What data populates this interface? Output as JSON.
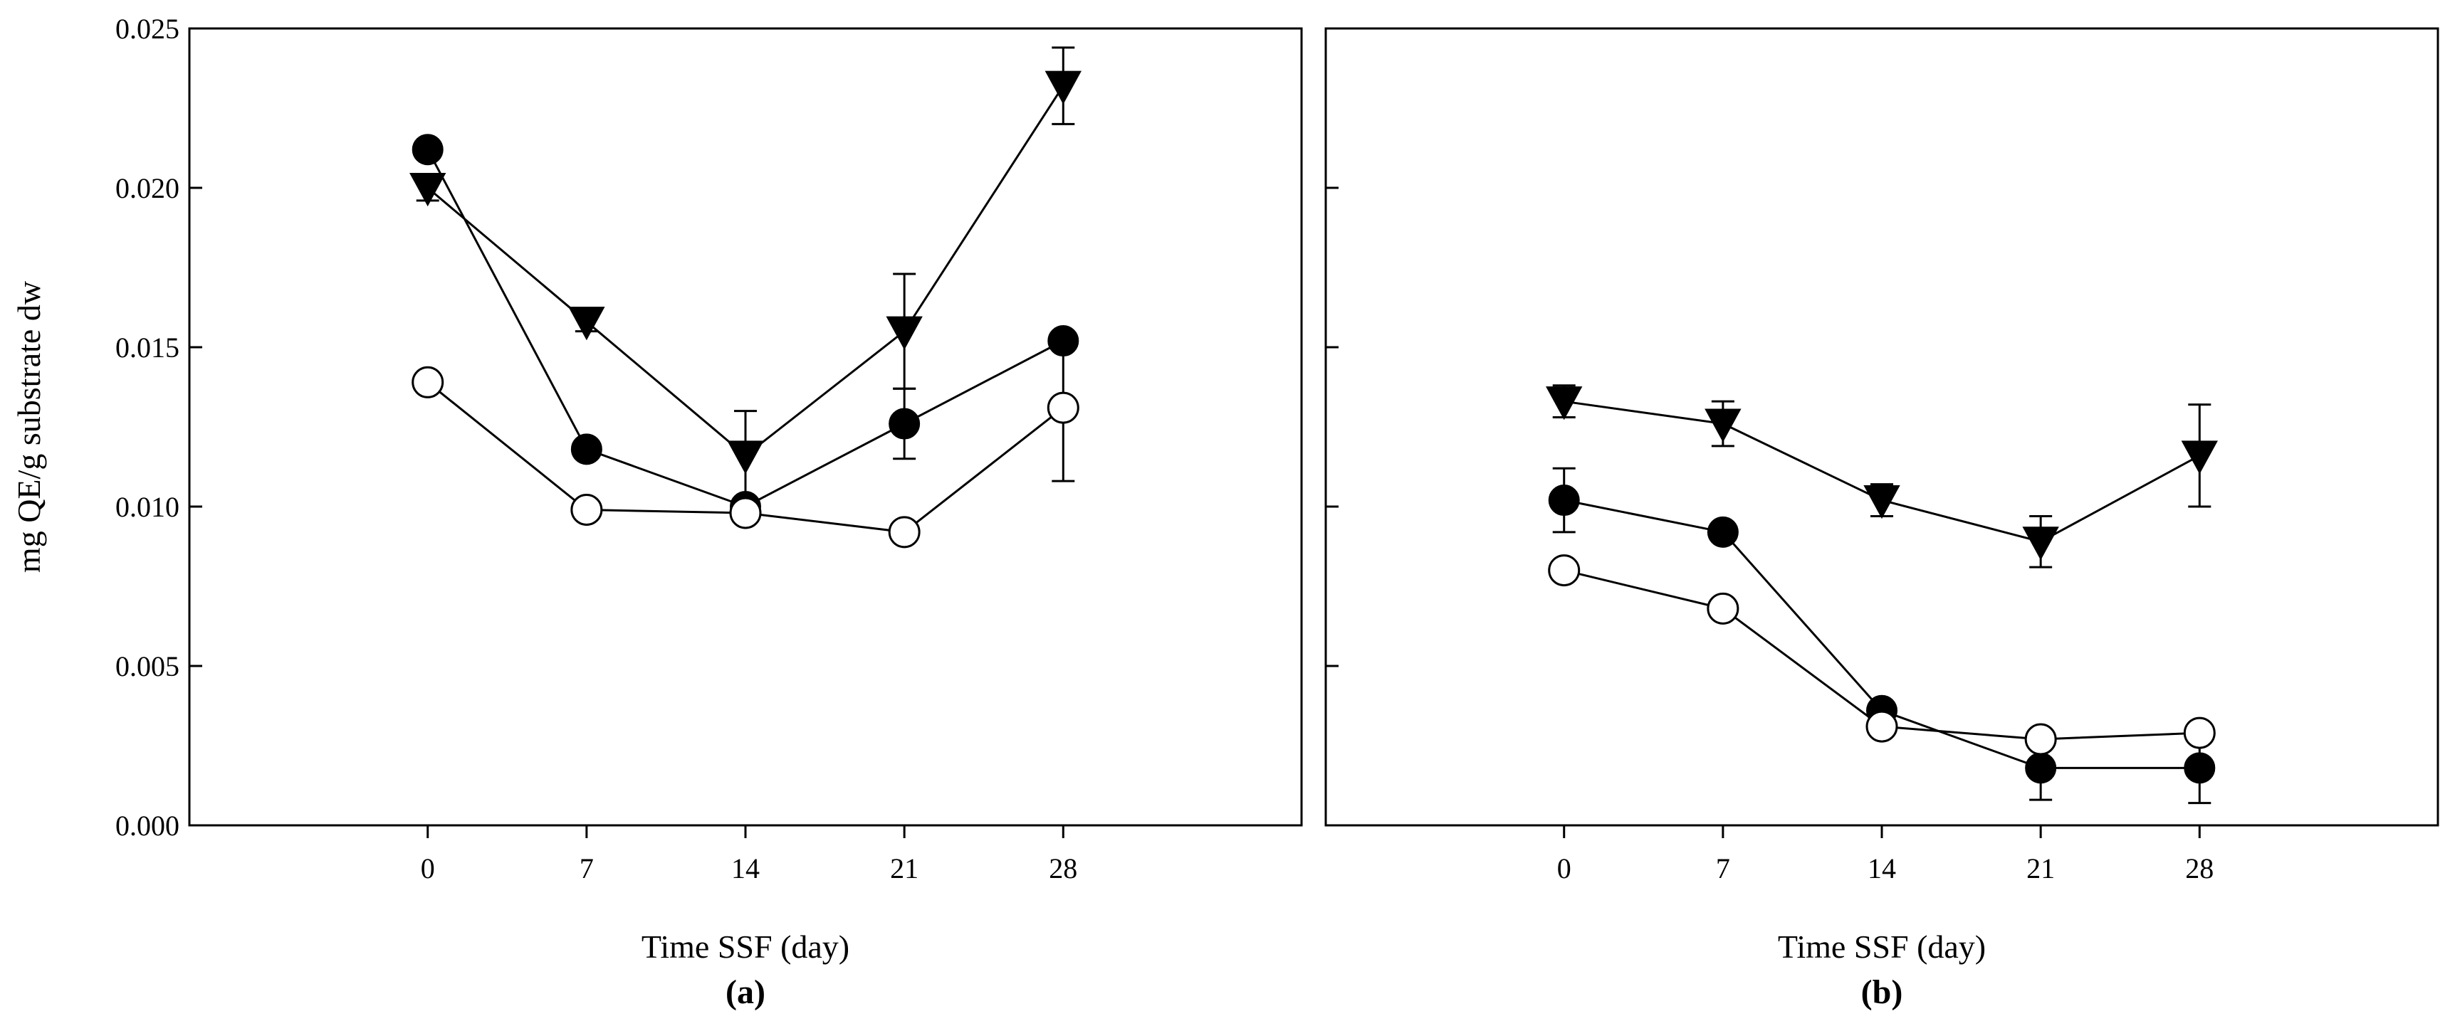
{
  "colors": {
    "ink": "#000000",
    "background": "#ffffff",
    "open_marker_fill": "#ffffff"
  },
  "chart_data": [
    {
      "panel_label": "(a)",
      "type": "line",
      "xlabel": "Time SSF (day)",
      "ylabel": "mg QE/g substrate dw",
      "xlim": [
        -10.5,
        38.5
      ],
      "ylim": [
        0,
        0.025
      ],
      "x": [
        0,
        7,
        14,
        21,
        28
      ],
      "x_ticks": [
        "0",
        "7",
        "14",
        "21",
        "28"
      ],
      "y_ticks": [
        "0.000",
        "0.005",
        "0.010",
        "0.015",
        "0.020",
        "0.025"
      ],
      "series": [
        {
          "name": "triangle-down",
          "marker": "triangle-down",
          "values": [
            0.02,
            0.0158,
            0.0116,
            0.0155,
            0.0232
          ],
          "errors": [
            0.0004,
            0.0003,
            0.0014,
            0.0018,
            0.0012
          ]
        },
        {
          "name": "filled-circle",
          "marker": "filled-circle",
          "values": [
            0.0212,
            0.0118,
            0.01,
            0.0126,
            0.0152
          ],
          "errors": [
            0,
            0,
            0,
            0.0011,
            0
          ]
        },
        {
          "name": "open-circle",
          "marker": "open-circle",
          "values": [
            0.0139,
            0.0099,
            0.0098,
            0.0092,
            0.0131
          ],
          "errors": [
            0,
            0,
            0,
            0,
            0.0023
          ]
        }
      ]
    },
    {
      "panel_label": "(b)",
      "type": "line",
      "xlabel": "Time SSF (day)",
      "ylabel": "",
      "xlim": [
        -10.5,
        38.5
      ],
      "ylim": [
        0,
        0.025
      ],
      "x": [
        0,
        7,
        14,
        21,
        28
      ],
      "x_ticks": [
        "0",
        "7",
        "14",
        "21",
        "28"
      ],
      "y_ticks": [],
      "series": [
        {
          "name": "triangle-down",
          "marker": "triangle-down",
          "values": [
            0.0133,
            0.0126,
            0.0102,
            0.0089,
            0.0116
          ],
          "errors": [
            0.0005,
            0.0007,
            0.0005,
            0.0008,
            0.0016
          ]
        },
        {
          "name": "filled-circle",
          "marker": "filled-circle",
          "values": [
            0.0102,
            0.0092,
            0.0036,
            0.0018,
            0.0018
          ],
          "errors": [
            0.001,
            0,
            0,
            0.001,
            0.0011
          ]
        },
        {
          "name": "open-circle",
          "marker": "open-circle",
          "values": [
            0.008,
            0.0068,
            0.0031,
            0.0027,
            0.0029
          ],
          "errors": [
            0,
            0,
            0,
            0,
            0
          ]
        }
      ]
    }
  ]
}
